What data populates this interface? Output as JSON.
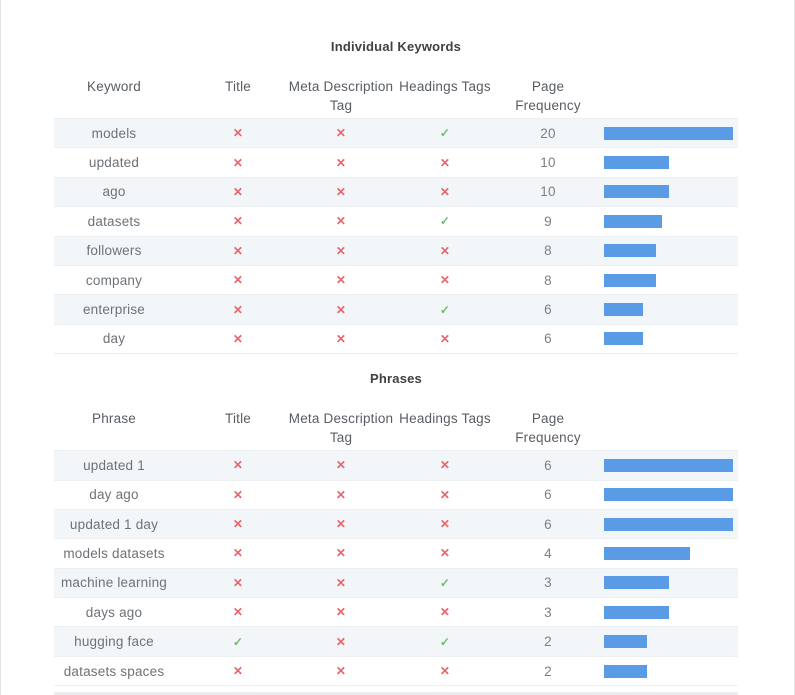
{
  "colors": {
    "bar": "#5a9be6",
    "pass": "#6dbe6b",
    "fail": "#e9646b",
    "stripe": "#f3f6f9"
  },
  "icons": {
    "pass_icon": "✓",
    "fail_icon": "✕"
  },
  "tables": [
    {
      "title": "Individual Keywords",
      "columns": [
        "Keyword",
        "Title",
        "Meta Description Tag",
        "Headings Tags",
        "Page Frequency"
      ],
      "max_frequency": 20,
      "rows": [
        {
          "term": "models",
          "in_title": false,
          "in_meta_description": false,
          "in_headings": true,
          "page_frequency": 20
        },
        {
          "term": "updated",
          "in_title": false,
          "in_meta_description": false,
          "in_headings": false,
          "page_frequency": 10
        },
        {
          "term": "ago",
          "in_title": false,
          "in_meta_description": false,
          "in_headings": false,
          "page_frequency": 10
        },
        {
          "term": "datasets",
          "in_title": false,
          "in_meta_description": false,
          "in_headings": true,
          "page_frequency": 9
        },
        {
          "term": "followers",
          "in_title": false,
          "in_meta_description": false,
          "in_headings": false,
          "page_frequency": 8
        },
        {
          "term": "company",
          "in_title": false,
          "in_meta_description": false,
          "in_headings": false,
          "page_frequency": 8
        },
        {
          "term": "enterprise",
          "in_title": false,
          "in_meta_description": false,
          "in_headings": true,
          "page_frequency": 6
        },
        {
          "term": "day",
          "in_title": false,
          "in_meta_description": false,
          "in_headings": false,
          "page_frequency": 6
        }
      ]
    },
    {
      "title": "Phrases",
      "columns": [
        "Phrase",
        "Title",
        "Meta Description Tag",
        "Headings Tags",
        "Page Frequency"
      ],
      "max_frequency": 6,
      "rows": [
        {
          "term": "updated 1",
          "in_title": false,
          "in_meta_description": false,
          "in_headings": false,
          "page_frequency": 6
        },
        {
          "term": "day ago",
          "in_title": false,
          "in_meta_description": false,
          "in_headings": false,
          "page_frequency": 6
        },
        {
          "term": "updated 1 day",
          "in_title": false,
          "in_meta_description": false,
          "in_headings": false,
          "page_frequency": 6
        },
        {
          "term": "models datasets",
          "in_title": false,
          "in_meta_description": false,
          "in_headings": false,
          "page_frequency": 4
        },
        {
          "term": "machine learning",
          "in_title": false,
          "in_meta_description": false,
          "in_headings": true,
          "page_frequency": 3
        },
        {
          "term": "days ago",
          "in_title": false,
          "in_meta_description": false,
          "in_headings": false,
          "page_frequency": 3
        },
        {
          "term": "hugging face",
          "in_title": true,
          "in_meta_description": false,
          "in_headings": true,
          "page_frequency": 2
        },
        {
          "term": "datasets spaces",
          "in_title": false,
          "in_meta_description": false,
          "in_headings": false,
          "page_frequency": 2
        }
      ]
    }
  ]
}
